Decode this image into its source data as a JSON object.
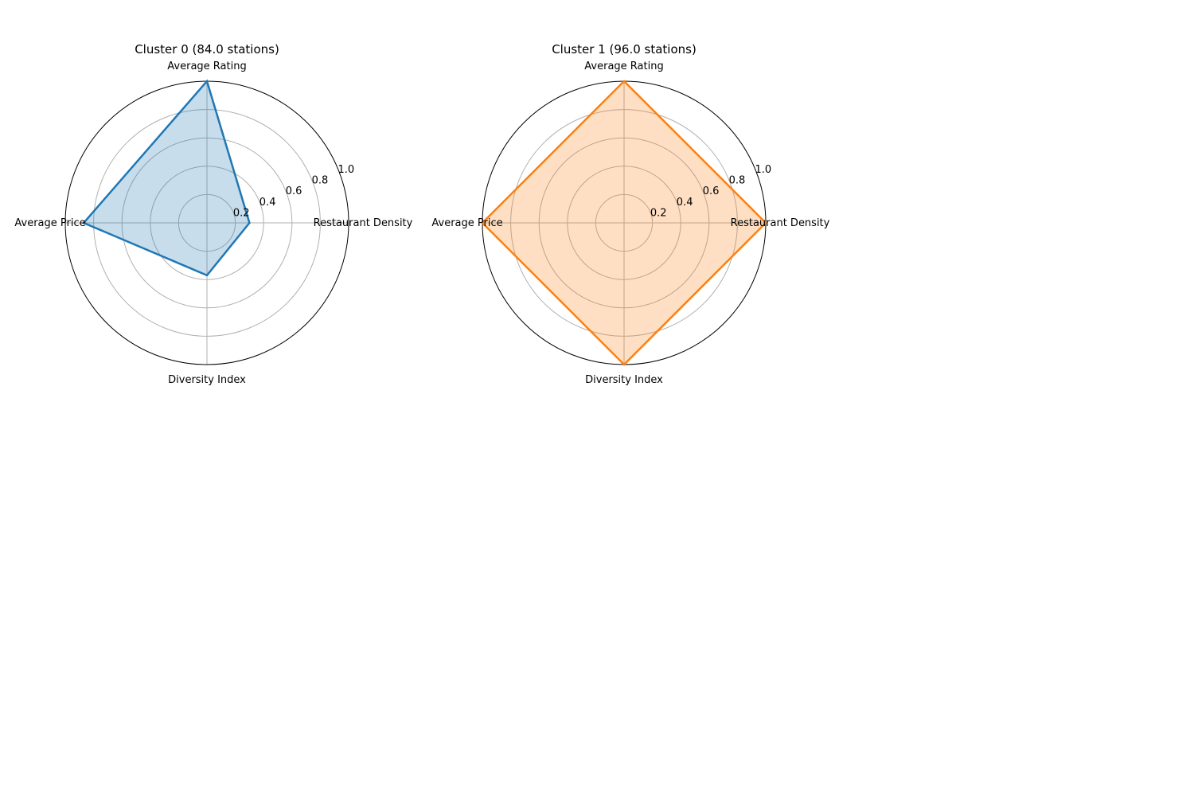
{
  "chart_data": [
    {
      "type": "radar",
      "title": "Cluster 0 (84.0 stations)",
      "axes": [
        "Restaurant Density",
        "Average Rating",
        "Average Price",
        "Diversity Index"
      ],
      "values": [
        0.3,
        1.0,
        0.87,
        0.37
      ],
      "rlim": [
        0,
        1.0
      ],
      "rticks": [
        0.2,
        0.4,
        0.6,
        0.8,
        1.0
      ],
      "rtick_labels": [
        "0.2",
        "0.4",
        "0.6",
        "0.8",
        "1.0"
      ],
      "grid": true,
      "legend": false,
      "line_color": "#1f77b4",
      "fill_color": "#1f77b4"
    },
    {
      "type": "radar",
      "title": "Cluster 1 (96.0 stations)",
      "axes": [
        "Restaurant Density",
        "Average Rating",
        "Average Price",
        "Diversity Index"
      ],
      "values": [
        1.0,
        1.0,
        1.0,
        1.0
      ],
      "rlim": [
        0,
        1.0
      ],
      "rticks": [
        0.2,
        0.4,
        0.6,
        0.8,
        1.0
      ],
      "rtick_labels": [
        "0.2",
        "0.4",
        "0.6",
        "0.8",
        "1.0"
      ],
      "grid": true,
      "legend": false,
      "line_color": "#ff7f0e",
      "fill_color": "#ff7f0e"
    }
  ]
}
